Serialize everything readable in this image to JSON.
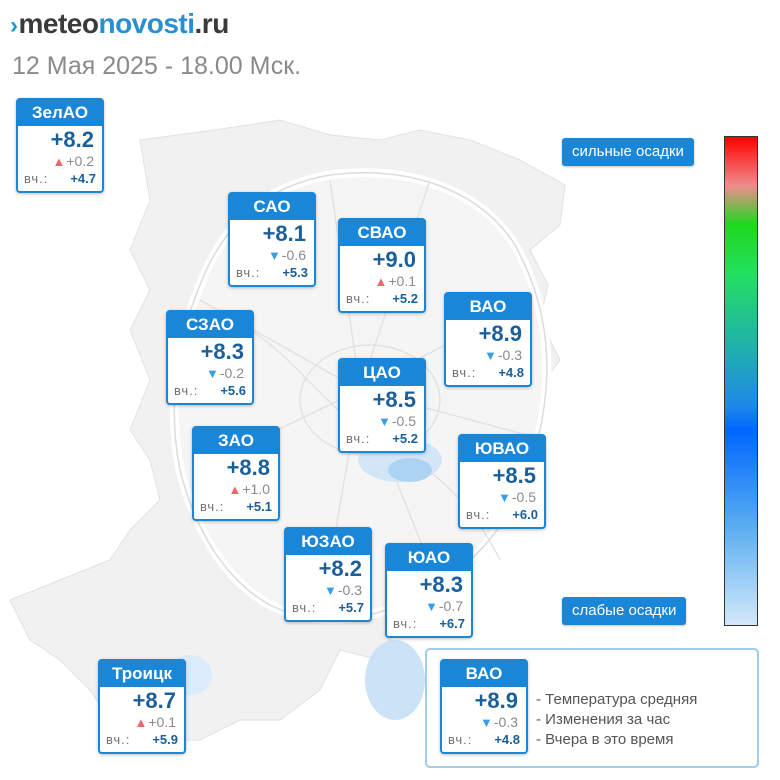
{
  "header": {
    "logo_mark": "›",
    "logo_part1": "meteo",
    "logo_part2": "novosti",
    "logo_part3": ".ru",
    "datetime": "12 Мая 2025 - 18.00 Мск."
  },
  "yesterday_label": "вч.:",
  "colors": {
    "accent": "#1a86d8",
    "arrow_down": "#3a9ee4",
    "arrow_up": "#e86a6a",
    "temp_text": "#1a5f99"
  },
  "districts": [
    {
      "name": "ЗелАО",
      "temp": "+8.2",
      "trend": "up",
      "change": "+0.2",
      "yesterday": "+4.7"
    },
    {
      "name": "САО",
      "temp": "+8.1",
      "trend": "down",
      "change": "-0.6",
      "yesterday": "+5.3"
    },
    {
      "name": "СВАО",
      "temp": "+9.0",
      "trend": "up",
      "change": "+0.1",
      "yesterday": "+5.2"
    },
    {
      "name": "ВАО",
      "temp": "+8.9",
      "trend": "down",
      "change": "-0.3",
      "yesterday": "+4.8"
    },
    {
      "name": "СЗАО",
      "temp": "+8.3",
      "trend": "down",
      "change": "-0.2",
      "yesterday": "+5.6"
    },
    {
      "name": "ЦАО",
      "temp": "+8.5",
      "trend": "down",
      "change": "-0.5",
      "yesterday": "+5.2"
    },
    {
      "name": "ЗАО",
      "temp": "+8.8",
      "trend": "up",
      "change": "+1.0",
      "yesterday": "+5.1"
    },
    {
      "name": "ЮВАО",
      "temp": "+8.5",
      "trend": "down",
      "change": "-0.5",
      "yesterday": "+6.0"
    },
    {
      "name": "ЮЗАО",
      "temp": "+8.2",
      "trend": "down",
      "change": "-0.3",
      "yesterday": "+5.7"
    },
    {
      "name": "ЮАО",
      "temp": "+8.3",
      "trend": "down",
      "change": "-0.7",
      "yesterday": "+6.7"
    },
    {
      "name": "Троицк",
      "temp": "+8.7",
      "trend": "up",
      "change": "+0.1",
      "yesterday": "+5.9"
    }
  ],
  "precip_scale": {
    "top_label": "сильные осадки",
    "bottom_label": "слабые осадки"
  },
  "legend": {
    "example": {
      "name": "ВАО",
      "temp": "+8.9",
      "trend": "down",
      "change": "-0.3",
      "yesterday": "+4.8"
    },
    "lines": [
      "- Температура средняя",
      "- Изменения за час",
      "- Вчера в это время"
    ]
  }
}
